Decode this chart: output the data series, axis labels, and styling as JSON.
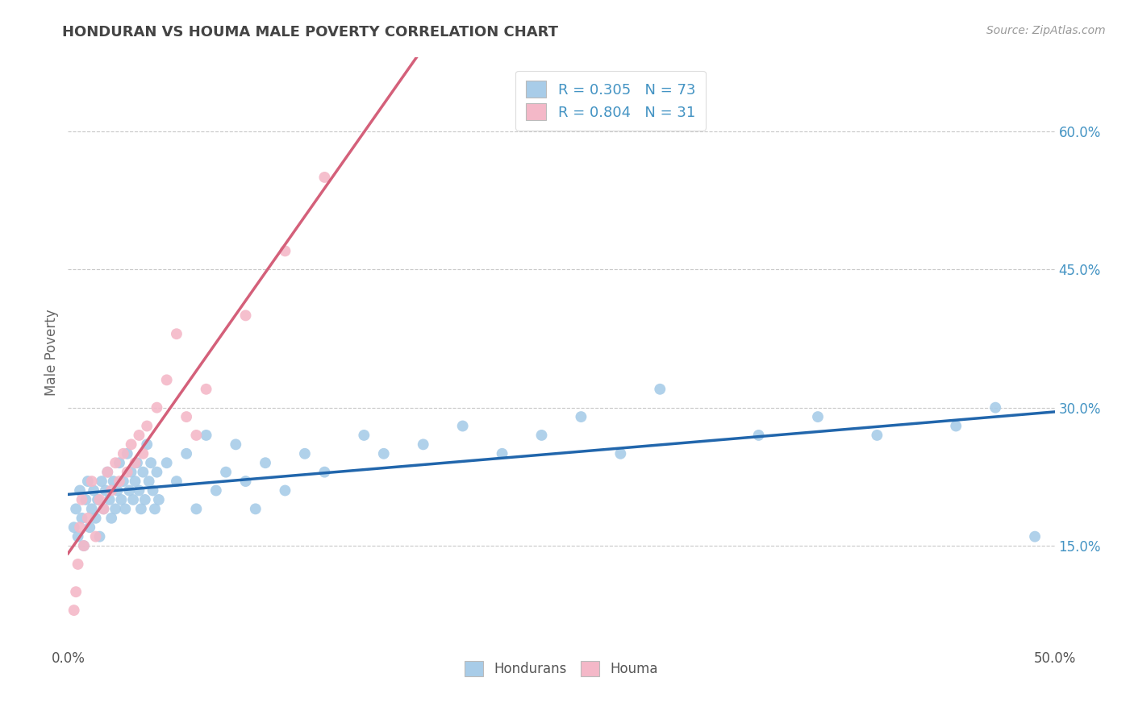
{
  "title": "HONDURAN VS HOUMA MALE POVERTY CORRELATION CHART",
  "source": "Source: ZipAtlas.com",
  "ylabel": "Male Poverty",
  "xmin": 0.0,
  "xmax": 0.5,
  "ymin": 0.04,
  "ymax": 0.68,
  "yticks": [
    0.15,
    0.3,
    0.45,
    0.6
  ],
  "ytick_labels": [
    "15.0%",
    "30.0%",
    "45.0%",
    "60.0%"
  ],
  "xticks": [
    0.0,
    0.1,
    0.2,
    0.3,
    0.4,
    0.5
  ],
  "xtick_labels": [
    "0.0%",
    "",
    "",
    "",
    "",
    "50.0%"
  ],
  "honduran_R": 0.305,
  "honduran_N": 73,
  "houma_R": 0.804,
  "houma_N": 31,
  "blue_color": "#a8cce8",
  "pink_color": "#f4b8c8",
  "blue_line_color": "#2166ac",
  "pink_line_color": "#d4607a",
  "legend_text_color": "#4393c3",
  "background_color": "#ffffff",
  "grid_color": "#c8c8c8",
  "hondurans_x": [
    0.003,
    0.004,
    0.005,
    0.006,
    0.007,
    0.008,
    0.009,
    0.01,
    0.011,
    0.012,
    0.013,
    0.014,
    0.015,
    0.016,
    0.017,
    0.018,
    0.019,
    0.02,
    0.021,
    0.022,
    0.023,
    0.024,
    0.025,
    0.026,
    0.027,
    0.028,
    0.029,
    0.03,
    0.031,
    0.032,
    0.033,
    0.034,
    0.035,
    0.036,
    0.037,
    0.038,
    0.039,
    0.04,
    0.041,
    0.042,
    0.043,
    0.044,
    0.045,
    0.046,
    0.05,
    0.055,
    0.06,
    0.065,
    0.07,
    0.075,
    0.08,
    0.085,
    0.09,
    0.095,
    0.1,
    0.11,
    0.12,
    0.13,
    0.15,
    0.16,
    0.18,
    0.2,
    0.22,
    0.24,
    0.26,
    0.28,
    0.3,
    0.35,
    0.38,
    0.41,
    0.45,
    0.47,
    0.49
  ],
  "hondurans_y": [
    0.17,
    0.19,
    0.16,
    0.21,
    0.18,
    0.15,
    0.2,
    0.22,
    0.17,
    0.19,
    0.21,
    0.18,
    0.2,
    0.16,
    0.22,
    0.19,
    0.21,
    0.23,
    0.2,
    0.18,
    0.22,
    0.19,
    0.21,
    0.24,
    0.2,
    0.22,
    0.19,
    0.25,
    0.21,
    0.23,
    0.2,
    0.22,
    0.24,
    0.21,
    0.19,
    0.23,
    0.2,
    0.26,
    0.22,
    0.24,
    0.21,
    0.19,
    0.23,
    0.2,
    0.24,
    0.22,
    0.25,
    0.19,
    0.27,
    0.21,
    0.23,
    0.26,
    0.22,
    0.19,
    0.24,
    0.21,
    0.25,
    0.23,
    0.27,
    0.25,
    0.26,
    0.28,
    0.25,
    0.27,
    0.29,
    0.25,
    0.32,
    0.27,
    0.29,
    0.27,
    0.28,
    0.3,
    0.16
  ],
  "houma_x": [
    0.003,
    0.004,
    0.005,
    0.006,
    0.007,
    0.008,
    0.01,
    0.012,
    0.014,
    0.016,
    0.018,
    0.02,
    0.022,
    0.024,
    0.026,
    0.028,
    0.03,
    0.032,
    0.034,
    0.036,
    0.038,
    0.04,
    0.045,
    0.05,
    0.055,
    0.06,
    0.065,
    0.07,
    0.09,
    0.11,
    0.13
  ],
  "houma_y": [
    0.08,
    0.1,
    0.13,
    0.17,
    0.2,
    0.15,
    0.18,
    0.22,
    0.16,
    0.2,
    0.19,
    0.23,
    0.21,
    0.24,
    0.22,
    0.25,
    0.23,
    0.26,
    0.24,
    0.27,
    0.25,
    0.28,
    0.3,
    0.33,
    0.38,
    0.29,
    0.27,
    0.32,
    0.4,
    0.47,
    0.55
  ]
}
